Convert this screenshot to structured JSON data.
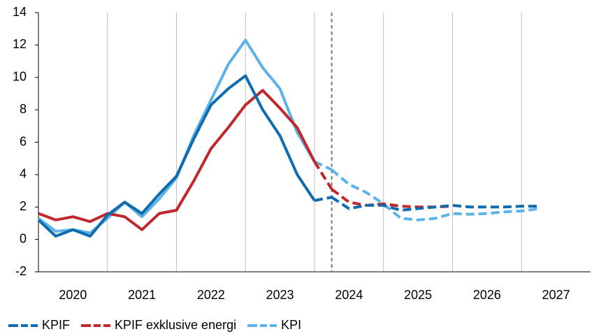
{
  "chart_data": {
    "type": "line",
    "x": [
      2020,
      2020.25,
      2020.5,
      2020.75,
      2021,
      2021.25,
      2021.5,
      2021.75,
      2022,
      2022.25,
      2022.5,
      2022.75,
      2023,
      2023.25,
      2023.5,
      2023.75,
      2024,
      2024.25,
      2024.5,
      2024.75,
      2025,
      2025.25,
      2025.5,
      2025.75,
      2026,
      2026.25,
      2026.5,
      2026.75,
      2027,
      2027.25
    ],
    "xlim": [
      2020,
      2028
    ],
    "xticks": [
      2020,
      2021,
      2022,
      2023,
      2024,
      2025,
      2026,
      2027
    ],
    "ylim": [
      -2,
      14
    ],
    "yticks": [
      -2,
      0,
      2,
      4,
      6,
      8,
      10,
      12,
      14
    ],
    "forecast_start": 2024.25,
    "vertical_grid": true,
    "legend": "bottom-left",
    "series": [
      {
        "name": "KPIF",
        "color": "#0f6cb0",
        "values": [
          1.2,
          0.2,
          0.6,
          0.2,
          1.5,
          2.3,
          1.6,
          2.8,
          3.9,
          6.2,
          8.3,
          9.3,
          10.1,
          8.0,
          6.4,
          4.0,
          2.4,
          null,
          null,
          null,
          null,
          null,
          null,
          null,
          null,
          null,
          null,
          null,
          null,
          null
        ],
        "forecast": [
          null,
          null,
          null,
          null,
          null,
          null,
          null,
          null,
          null,
          null,
          null,
          null,
          null,
          null,
          null,
          null,
          null,
          2.6,
          1.9,
          2.1,
          2.1,
          1.8,
          1.9,
          2.0,
          2.1,
          2.0,
          2.0,
          2.0,
          2.05,
          2.05
        ]
      },
      {
        "name": "KPIF exklusive energi",
        "color": "#c1272d",
        "values": [
          1.6,
          1.2,
          1.4,
          1.1,
          1.6,
          1.4,
          0.6,
          1.6,
          1.8,
          3.6,
          5.6,
          6.9,
          8.3,
          9.2,
          8.1,
          6.9,
          4.8,
          null,
          null,
          null,
          null,
          null,
          null,
          null,
          null,
          null,
          null,
          null,
          null,
          null
        ],
        "forecast": [
          null,
          null,
          null,
          null,
          null,
          null,
          null,
          null,
          null,
          null,
          null,
          null,
          null,
          null,
          null,
          null,
          null,
          3.1,
          2.3,
          2.1,
          2.2,
          2.05,
          2.0,
          2.0,
          2.05,
          null,
          null,
          null,
          null,
          null
        ]
      },
      {
        "name": "KPI",
        "color": "#5db2e8",
        "values": [
          1.3,
          0.5,
          0.6,
          0.4,
          1.3,
          2.3,
          1.4,
          2.5,
          3.8,
          6.4,
          8.6,
          10.8,
          12.3,
          10.6,
          9.3,
          6.6,
          4.8,
          null,
          null,
          null,
          null,
          null,
          null,
          null,
          null,
          null,
          null,
          null,
          null,
          null
        ],
        "forecast": [
          null,
          null,
          null,
          null,
          null,
          null,
          null,
          null,
          null,
          null,
          null,
          null,
          null,
          null,
          null,
          null,
          null,
          4.3,
          3.4,
          2.9,
          2.2,
          1.3,
          1.2,
          1.3,
          1.6,
          1.55,
          1.6,
          1.7,
          1.75,
          1.9
        ]
      }
    ]
  }
}
